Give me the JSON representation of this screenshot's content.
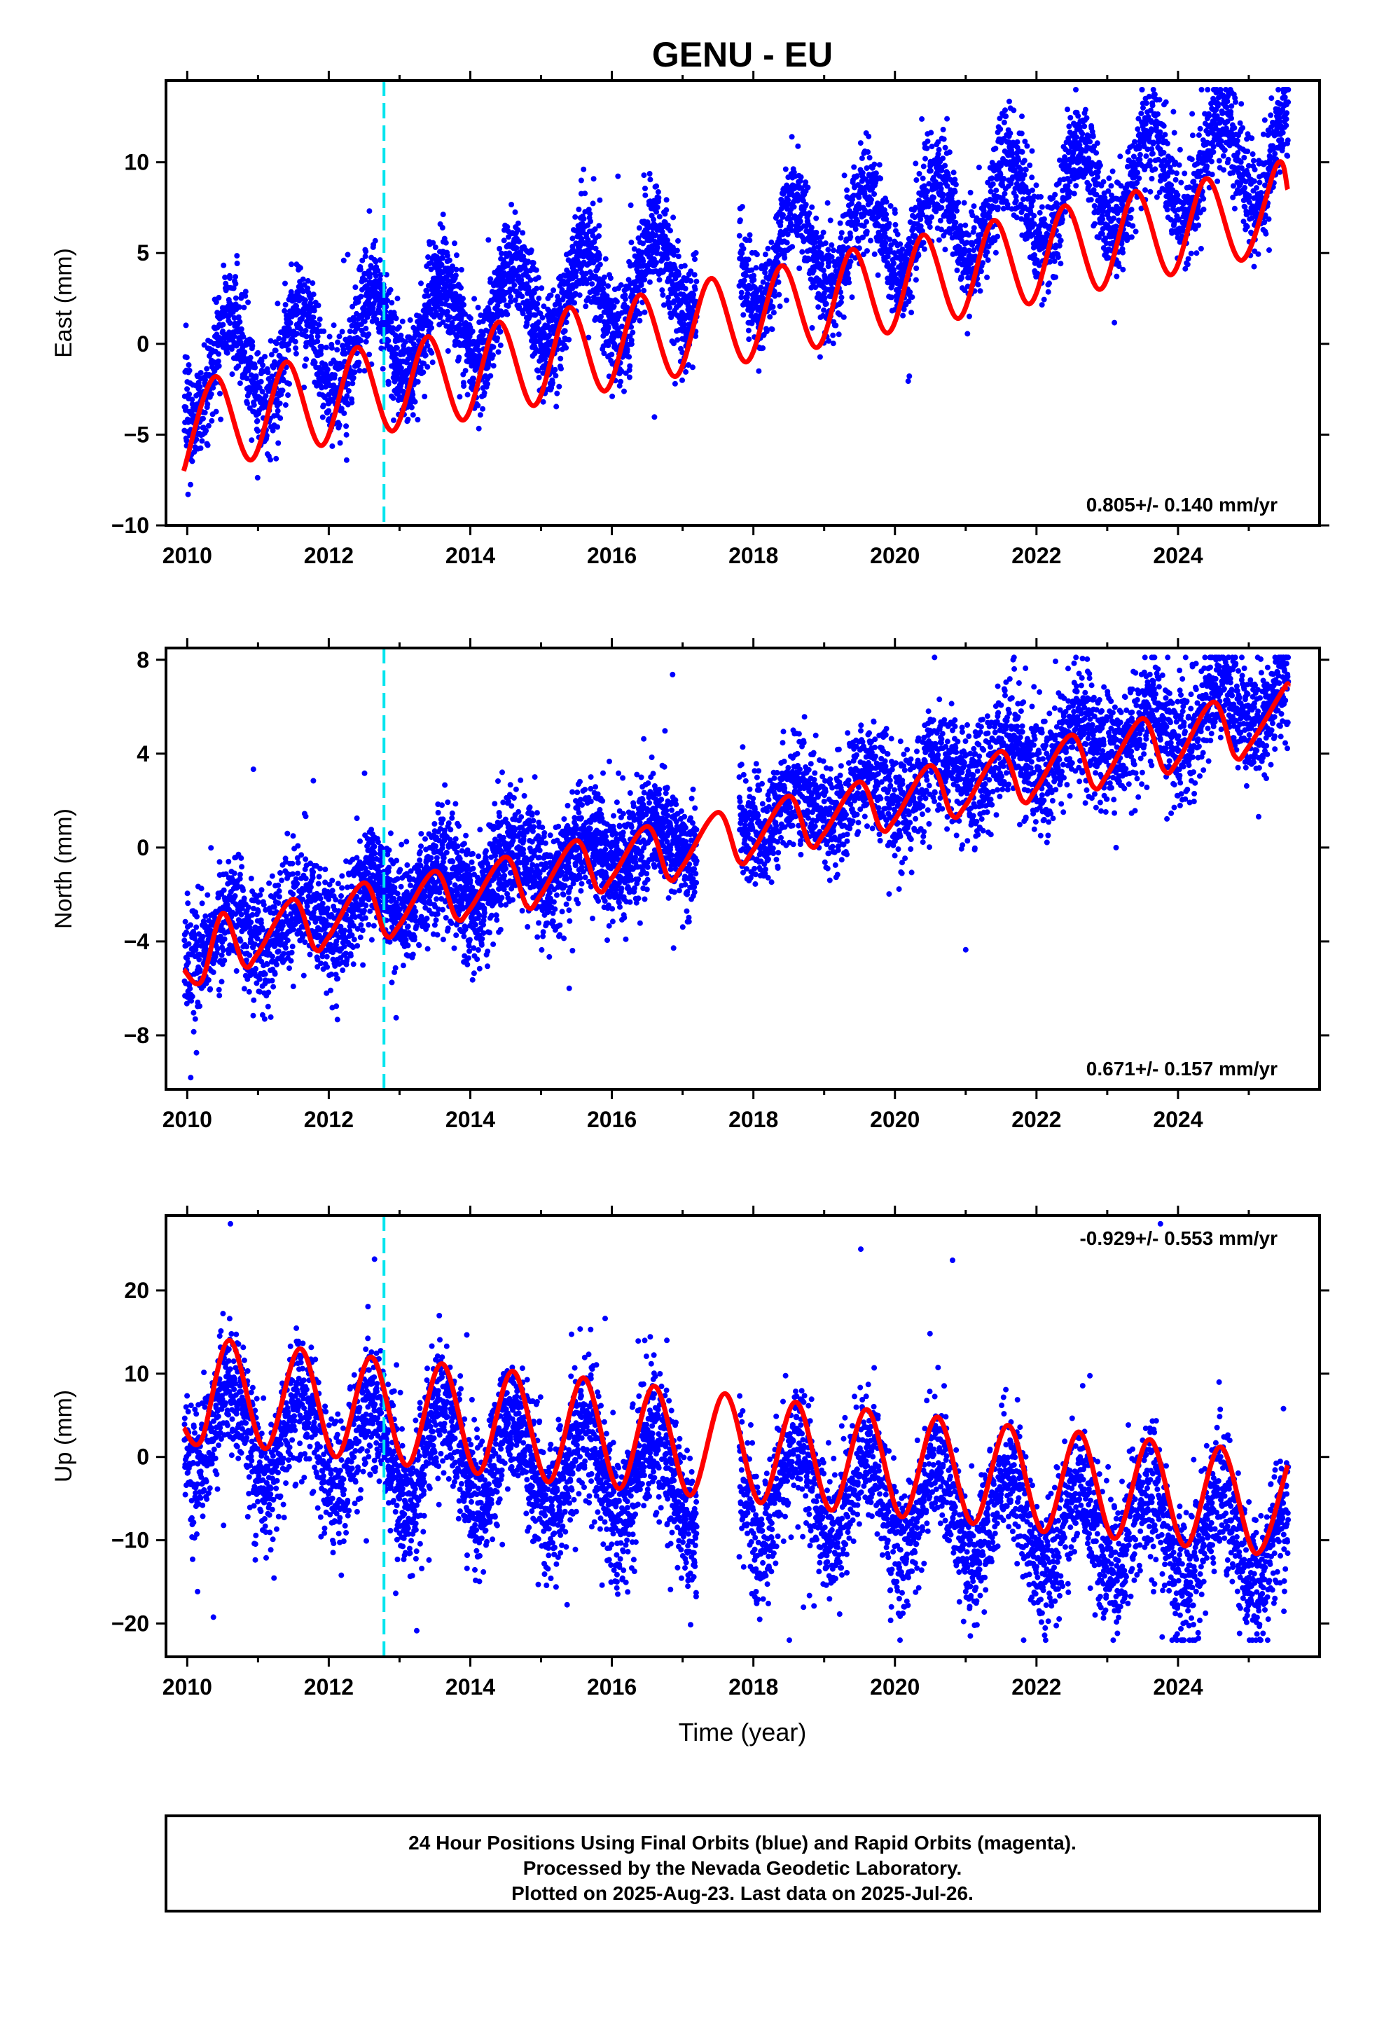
{
  "title": "GENU - EU",
  "x_ticks": [
    "2010",
    "2012",
    "2014",
    "2016",
    "2018",
    "2020",
    "2022",
    "2024"
  ],
  "xlabel": "Time (year)",
  "event_line_year": 2012.78,
  "colors": {
    "points": "#0000ff",
    "fit": "#ff0000",
    "event": "#00e5ee"
  },
  "chart_data": [
    {
      "type": "scatter",
      "name": "east",
      "ylabel": "East (mm)",
      "xlim": [
        2009.7,
        2026.0
      ],
      "ylim": [
        -10,
        14.5
      ],
      "yticks": [
        -10,
        -5,
        0,
        5,
        10
      ],
      "ytick_labels": [
        "−10",
        "−5",
        "0",
        "5",
        "10"
      ],
      "rate_label": "0.805+/- 0.140 mm/yr",
      "rate_position": "bottom-right",
      "fit": {
        "series": "seasonal trend (red)",
        "x": [
          2009.95,
          2010.4,
          2010.9,
          2011.4,
          2011.9,
          2012.4,
          2012.9,
          2013.4,
          2013.9,
          2014.4,
          2014.9,
          2015.4,
          2015.9,
          2016.4,
          2016.9,
          2017.4,
          2017.9,
          2018.4,
          2018.9,
          2019.4,
          2019.9,
          2020.4,
          2020.9,
          2021.4,
          2021.9,
          2022.4,
          2022.9,
          2023.4,
          2023.9,
          2024.4,
          2024.9,
          2025.4,
          2025.55
        ],
        "y": [
          -7.0,
          -1.8,
          -6.4,
          -1.0,
          -5.6,
          -0.2,
          -4.8,
          0.4,
          -4.2,
          1.2,
          -3.4,
          2.0,
          -2.6,
          2.7,
          -1.8,
          3.6,
          -1.0,
          4.3,
          -0.2,
          5.2,
          0.6,
          6.0,
          1.4,
          6.8,
          2.2,
          7.6,
          3.0,
          8.4,
          3.8,
          9.1,
          4.6,
          9.9,
          8.5
        ]
      },
      "scatter": {
        "amp": 5.2,
        "offset": -4.4,
        "slope": 0.805,
        "spread": 1.4,
        "y_max": 14.0,
        "y_min": -9.6,
        "gap": [
          2017.2,
          2017.8
        ]
      }
    },
    {
      "type": "scatter",
      "name": "north",
      "ylabel": "North (mm)",
      "xlim": [
        2009.7,
        2026.0
      ],
      "ylim": [
        -10.3,
        8.5
      ],
      "yticks": [
        -8,
        -4,
        0,
        4,
        8
      ],
      "ytick_labels": [
        "−8",
        "−4",
        "0",
        "4",
        "8"
      ],
      "rate_label": "0.671+/- 0.157 mm/yr",
      "rate_position": "bottom-right",
      "fit": {
        "series": "seasonal trend (red)",
        "x": [
          2009.95,
          2010.2,
          2010.5,
          2010.8,
          2011.0,
          2011.5,
          2011.8,
          2012.0,
          2012.5,
          2012.8,
          2013.0,
          2013.5,
          2013.8,
          2014.0,
          2014.5,
          2014.8,
          2015.0,
          2015.5,
          2015.8,
          2016.0,
          2016.5,
          2016.8,
          2017.0,
          2017.5,
          2017.8,
          2018.0,
          2018.5,
          2018.8,
          2019.0,
          2019.5,
          2019.8,
          2020.0,
          2020.5,
          2020.8,
          2021.0,
          2021.5,
          2021.8,
          2022.0,
          2022.5,
          2022.8,
          2023.0,
          2023.5,
          2023.8,
          2024.0,
          2024.5,
          2024.8,
          2025.0,
          2025.5,
          2025.55
        ],
        "y": [
          -5.2,
          -5.7,
          -2.8,
          -5.0,
          -4.5,
          -2.2,
          -4.3,
          -3.8,
          -1.5,
          -3.7,
          -3.3,
          -1.0,
          -3.0,
          -2.6,
          -0.4,
          -2.5,
          -2.0,
          0.3,
          -1.8,
          -1.3,
          0.9,
          -1.3,
          -0.8,
          1.5,
          -0.6,
          -0.1,
          2.2,
          0.1,
          0.6,
          2.8,
          0.8,
          1.2,
          3.5,
          1.4,
          1.8,
          4.1,
          2.0,
          2.5,
          4.8,
          2.6,
          3.1,
          5.5,
          3.3,
          3.7,
          6.2,
          3.9,
          4.3,
          6.8,
          6.8
        ]
      },
      "scatter": {
        "amp": 1.8,
        "offset": -5.0,
        "slope": 0.671,
        "spread": 1.2,
        "y_max": 8.1,
        "y_min": -9.8,
        "gap": [
          2017.2,
          2017.8
        ]
      }
    },
    {
      "type": "scatter",
      "name": "up",
      "ylabel": "Up (mm)",
      "xlim": [
        2009.7,
        2026.0
      ],
      "ylim": [
        -24,
        29
      ],
      "yticks": [
        -20,
        -10,
        0,
        10,
        20
      ],
      "ytick_labels": [
        "−20",
        "−10",
        "0",
        "10",
        "20"
      ],
      "rate_label": "-0.929+/- 0.553 mm/yr",
      "rate_position": "top-right",
      "fit": {
        "series": "seasonal trend (red)",
        "x": [
          2009.95,
          2010.2,
          2010.6,
          2011.1,
          2011.6,
          2012.1,
          2012.6,
          2013.1,
          2013.6,
          2014.1,
          2014.6,
          2015.1,
          2015.6,
          2016.1,
          2016.6,
          2017.1,
          2017.6,
          2018.1,
          2018.6,
          2019.1,
          2019.6,
          2020.1,
          2020.6,
          2021.1,
          2021.6,
          2022.1,
          2022.6,
          2023.1,
          2023.6,
          2024.1,
          2024.6,
          2025.1,
          2025.55
        ],
        "y": [
          3.5,
          2.0,
          14.0,
          1.0,
          13.0,
          0.0,
          12.0,
          -1.0,
          11.2,
          -2.0,
          10.3,
          -3.0,
          9.5,
          -3.8,
          8.5,
          -4.6,
          7.6,
          -5.5,
          6.6,
          -6.4,
          5.7,
          -7.2,
          4.8,
          -8.0,
          3.8,
          -9.0,
          3.0,
          -9.8,
          2.1,
          -10.7,
          1.2,
          -11.6,
          -1.0
        ]
      },
      "scatter": {
        "amp": 6.8,
        "offset": 3.5,
        "slope": -0.929,
        "spread": 4.0,
        "y_max": 28.0,
        "y_min": -22.0,
        "gap": [
          2017.2,
          2017.8
        ]
      }
    }
  ],
  "footer": {
    "line1": "24 Hour Positions Using Final Orbits (blue) and Rapid Orbits (magenta).",
    "line2": "Processed by the Nevada Geodetic Laboratory.",
    "line3": "Plotted on 2025-Aug-23. Last data on 2025-Jul-26."
  }
}
